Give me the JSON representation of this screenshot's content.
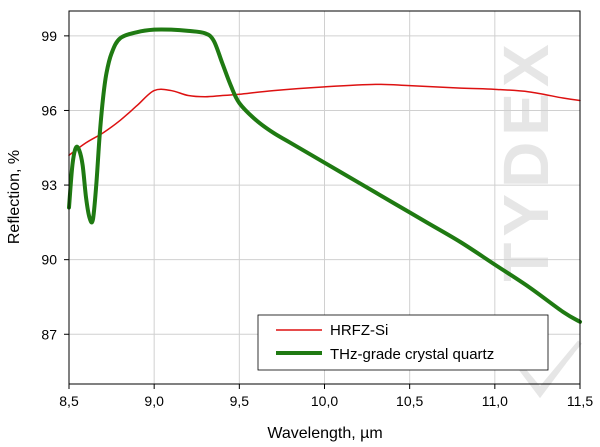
{
  "chart_data": {
    "type": "line",
    "title": "",
    "xlabel": "Wavelength, µm",
    "ylabel": "Reflection, %",
    "xlim": [
      8.5,
      11.5
    ],
    "ylim": [
      85,
      100
    ],
    "xticks": [
      8.5,
      9.0,
      9.5,
      10.0,
      10.5,
      11.0,
      11.5
    ],
    "xtick_labels": [
      "8,5",
      "9,0",
      "9,5",
      "10,0",
      "10,5",
      "11,0",
      "11,5"
    ],
    "yticks": [
      87,
      90,
      93,
      96,
      99
    ],
    "ytick_labels": [
      "87",
      "90",
      "93",
      "96",
      "99"
    ],
    "grid": true,
    "legend_position": "bottom-right",
    "series": [
      {
        "name": "HRFZ-Si",
        "color": "#dd1111",
        "x": [
          8.5,
          8.6,
          8.7,
          8.8,
          8.9,
          9.0,
          9.1,
          9.2,
          9.3,
          9.4,
          9.5,
          9.7,
          10.0,
          10.3,
          10.5,
          10.8,
          11.0,
          11.2,
          11.4,
          11.5
        ],
        "y": [
          94.2,
          94.7,
          95.1,
          95.6,
          96.2,
          96.8,
          96.8,
          96.6,
          96.55,
          96.6,
          96.65,
          96.8,
          96.95,
          97.05,
          97.0,
          96.9,
          96.85,
          96.75,
          96.5,
          96.4
        ]
      },
      {
        "name": "THz-grade crystal quartz",
        "color": "#1f7a12",
        "x": [
          8.5,
          8.52,
          8.54,
          8.56,
          8.58,
          8.6,
          8.62,
          8.64,
          8.66,
          8.68,
          8.7,
          8.72,
          8.75,
          8.8,
          8.9,
          9.0,
          9.1,
          9.2,
          9.3,
          9.35,
          9.4,
          9.45,
          9.5,
          9.6,
          9.7,
          9.8,
          10.0,
          10.2,
          10.4,
          10.6,
          10.8,
          11.0,
          11.2,
          11.4,
          11.5
        ],
        "y": [
          92.1,
          93.8,
          94.5,
          94.4,
          93.8,
          92.5,
          91.7,
          91.6,
          93.0,
          95.0,
          96.5,
          97.5,
          98.3,
          98.9,
          99.15,
          99.25,
          99.25,
          99.2,
          99.1,
          98.8,
          97.9,
          97.0,
          96.3,
          95.6,
          95.1,
          94.7,
          93.9,
          93.1,
          92.3,
          91.5,
          90.7,
          89.8,
          88.9,
          87.9,
          87.5
        ]
      }
    ]
  },
  "watermark": {
    "text": "TYDEX",
    "color": "#e6e6e6"
  }
}
